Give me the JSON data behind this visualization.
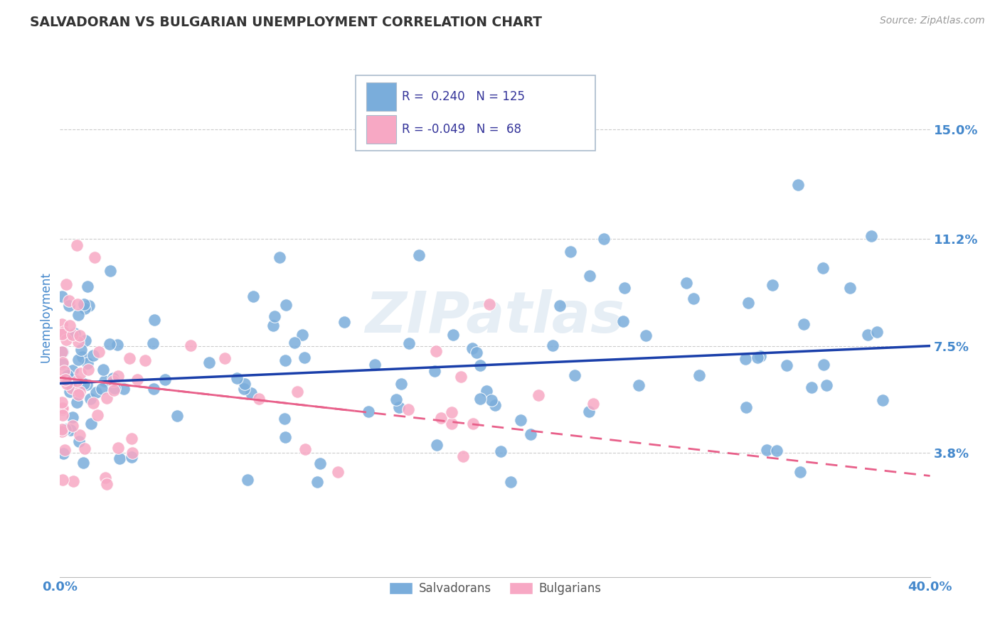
{
  "title": "SALVADORAN VS BULGARIAN UNEMPLOYMENT CORRELATION CHART",
  "source": "Source: ZipAtlas.com",
  "ylabel": "Unemployment",
  "ytick_vals": [
    0.038,
    0.075,
    0.112,
    0.15
  ],
  "ytick_labels": [
    "3.8%",
    "7.5%",
    "11.2%",
    "15.0%"
  ],
  "salvadoran_color": "#7aaddb",
  "bulgarian_color": "#f7a8c4",
  "trend_blue_color": "#1a3faa",
  "trend_pink_color": "#e8608a",
  "watermark": "ZIPatlas",
  "background_color": "#ffffff",
  "grid_color": "#cccccc",
  "xlim": [
    0.0,
    0.4
  ],
  "ylim": [
    -0.005,
    0.175
  ],
  "blue_trend_start_y": 0.062,
  "blue_trend_end_y": 0.075,
  "pink_trend_start_y": 0.064,
  "pink_trend_end_y": 0.03,
  "blue_r": 0.24,
  "blue_n": 125,
  "pink_r": -0.049,
  "pink_n": 68,
  "title_color": "#333333",
  "axis_label_color": "#4488cc",
  "source_color": "#999999",
  "legend_box_color": "#aabbcc",
  "legend_text_color": "#333399"
}
